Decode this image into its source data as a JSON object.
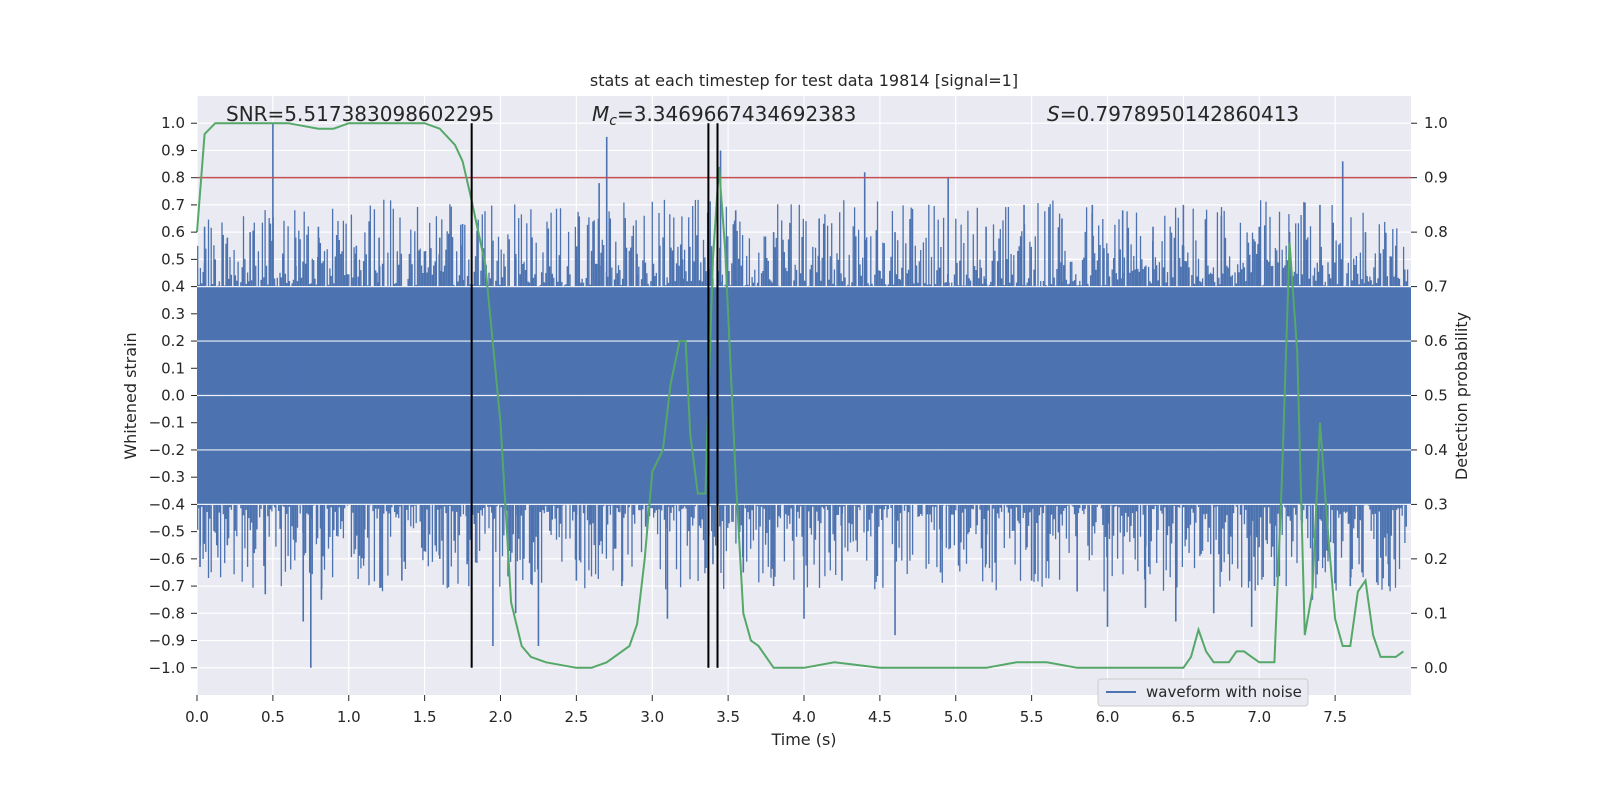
{
  "chart_data": {
    "type": "line",
    "title": "stats at each timestep for test data 19814 [signal=1]",
    "xlabel": "Time (s)",
    "ylabel": "Whitened strain",
    "ylabel_right": "Detection probability",
    "xlim": [
      0.0,
      8.0
    ],
    "ylim": [
      -1.1,
      1.1
    ],
    "ylim_right": [
      -0.05,
      1.05
    ],
    "x_ticks": [
      "0.0",
      "0.5",
      "1.0",
      "1.5",
      "2.0",
      "2.5",
      "3.0",
      "3.5",
      "4.0",
      "4.5",
      "5.0",
      "5.5",
      "6.0",
      "6.5",
      "7.0",
      "7.5"
    ],
    "y_ticks": [
      "1.0",
      "0.9",
      "0.8",
      "0.7",
      "0.6",
      "0.5",
      "0.4",
      "0.3",
      "0.2",
      "0.1",
      "0.0",
      "−0.1",
      "−0.2",
      "−0.3",
      "−0.4",
      "−0.5",
      "−0.6",
      "−0.7",
      "−0.8",
      "−0.9",
      "−1.0"
    ],
    "y_ticks_right": [
      "1.0",
      "0.9",
      "0.8",
      "0.7",
      "0.6",
      "0.5",
      "0.4",
      "0.3",
      "0.2",
      "0.1",
      "0.0"
    ],
    "annotations": {
      "snr": "SNR=5.517383098602295",
      "mc_symbol": "M",
      "mc_sub": "c",
      "mc_value": "=3.3469667434692383",
      "s_symbol": "S",
      "s_value": "=0.7978950142860413"
    },
    "threshold_line": {
      "axis": "right",
      "value": 0.9,
      "color": "#c44e52"
    },
    "vertical_lines": [
      1.81,
      3.37,
      3.43
    ],
    "legend": {
      "label": "waveform with noise",
      "position": "lower-right"
    },
    "series": [
      {
        "name": "waveform with noise",
        "axis": "left",
        "color": "#4c72b0",
        "dense_band": [
          -0.4,
          0.4
        ],
        "peaks": [
          [
            0.05,
            0.62
          ],
          [
            0.12,
            0.5
          ],
          [
            0.2,
            0.58
          ],
          [
            0.35,
            0.6
          ],
          [
            0.5,
            1.0
          ],
          [
            0.65,
            0.58
          ],
          [
            0.8,
            0.62
          ],
          [
            1.05,
            0.55
          ],
          [
            1.2,
            0.58
          ],
          [
            1.4,
            0.52
          ],
          [
            1.6,
            0.58
          ],
          [
            1.75,
            0.63
          ],
          [
            1.9,
            0.48
          ],
          [
            2.1,
            0.52
          ],
          [
            2.3,
            0.45
          ],
          [
            2.5,
            0.5
          ],
          [
            2.7,
            0.95
          ],
          [
            2.65,
            0.78
          ],
          [
            2.9,
            0.52
          ],
          [
            3.05,
            0.55
          ],
          [
            3.2,
            0.5
          ],
          [
            3.45,
            0.9
          ],
          [
            3.55,
            0.68
          ],
          [
            3.8,
            0.6
          ],
          [
            4.1,
            0.65
          ],
          [
            4.4,
            0.82
          ],
          [
            4.6,
            0.6
          ],
          [
            4.95,
            0.8
          ],
          [
            5.2,
            0.62
          ],
          [
            5.45,
            0.7
          ],
          [
            5.7,
            0.65
          ],
          [
            5.9,
            0.7
          ],
          [
            6.1,
            0.68
          ],
          [
            6.3,
            0.62
          ],
          [
            6.5,
            0.7
          ],
          [
            6.75,
            0.66
          ],
          [
            7.0,
            0.62
          ],
          [
            7.2,
            0.6
          ],
          [
            7.4,
            0.7
          ],
          [
            7.55,
            0.86
          ],
          [
            7.7,
            0.6
          ],
          [
            7.9,
            0.55
          ]
        ],
        "troughs": [
          [
            0.02,
            -0.63
          ],
          [
            0.2,
            -0.55
          ],
          [
            0.45,
            -0.73
          ],
          [
            0.7,
            -0.83
          ],
          [
            0.75,
            -1.0
          ],
          [
            0.82,
            -0.75
          ],
          [
            1.1,
            -0.6
          ],
          [
            1.35,
            -0.68
          ],
          [
            1.6,
            -0.6
          ],
          [
            1.78,
            -0.62
          ],
          [
            1.95,
            -0.92
          ],
          [
            2.1,
            -0.8
          ],
          [
            2.25,
            -0.92
          ],
          [
            2.5,
            -0.68
          ],
          [
            2.8,
            -0.7
          ],
          [
            3.1,
            -0.82
          ],
          [
            3.4,
            -0.62
          ],
          [
            3.6,
            -0.65
          ],
          [
            3.8,
            -0.7
          ],
          [
            4.0,
            -0.82
          ],
          [
            4.25,
            -0.68
          ],
          [
            4.6,
            -0.88
          ],
          [
            4.9,
            -0.65
          ],
          [
            5.2,
            -0.62
          ],
          [
            5.5,
            -0.68
          ],
          [
            5.8,
            -0.72
          ],
          [
            6.0,
            -0.85
          ],
          [
            6.25,
            -0.78
          ],
          [
            6.45,
            -0.83
          ],
          [
            6.7,
            -0.8
          ],
          [
            6.95,
            -0.85
          ],
          [
            7.1,
            -0.7
          ],
          [
            7.35,
            -0.75
          ],
          [
            7.6,
            -0.7
          ],
          [
            7.85,
            -0.62
          ]
        ]
      },
      {
        "name": "detection probability",
        "axis": "right",
        "color": "#55a868",
        "x": [
          0.0,
          0.05,
          0.12,
          0.2,
          0.4,
          0.6,
          0.8,
          0.9,
          1.0,
          1.2,
          1.4,
          1.5,
          1.6,
          1.7,
          1.75,
          1.8,
          1.9,
          2.0,
          2.07,
          2.14,
          2.2,
          2.3,
          2.5,
          2.6,
          2.7,
          2.8,
          2.85,
          2.9,
          2.95,
          3.0,
          3.07,
          3.12,
          3.18,
          3.22,
          3.25,
          3.3,
          3.35,
          3.4,
          3.44,
          3.48,
          3.55,
          3.6,
          3.65,
          3.7,
          3.75,
          3.8,
          4.0,
          4.2,
          4.5,
          4.8,
          5.0,
          5.2,
          5.4,
          5.6,
          5.8,
          6.0,
          6.2,
          6.4,
          6.5,
          6.55,
          6.6,
          6.65,
          6.7,
          6.75,
          6.8,
          6.85,
          6.9,
          6.95,
          7.0,
          7.05,
          7.1,
          7.15,
          7.2,
          7.25,
          7.3,
          7.35,
          7.4,
          7.45,
          7.5,
          7.55,
          7.6,
          7.65,
          7.7,
          7.75,
          7.8,
          7.9,
          7.95
        ],
        "y": [
          0.8,
          0.98,
          1.0,
          1.0,
          1.0,
          1.0,
          0.99,
          0.99,
          1.0,
          1.0,
          1.0,
          1.0,
          0.99,
          0.96,
          0.93,
          0.87,
          0.74,
          0.45,
          0.12,
          0.04,
          0.02,
          0.01,
          0.0,
          0.0,
          0.01,
          0.03,
          0.04,
          0.08,
          0.2,
          0.36,
          0.4,
          0.52,
          0.6,
          0.6,
          0.43,
          0.32,
          0.32,
          0.75,
          0.92,
          0.77,
          0.35,
          0.1,
          0.05,
          0.04,
          0.02,
          0.0,
          0.0,
          0.01,
          0.0,
          0.0,
          0.0,
          0.0,
          0.01,
          0.01,
          0.0,
          0.0,
          0.0,
          0.0,
          0.0,
          0.02,
          0.07,
          0.03,
          0.01,
          0.01,
          0.01,
          0.03,
          0.03,
          0.02,
          0.01,
          0.01,
          0.01,
          0.35,
          0.78,
          0.58,
          0.06,
          0.14,
          0.45,
          0.26,
          0.09,
          0.04,
          0.04,
          0.14,
          0.16,
          0.06,
          0.02,
          0.02,
          0.03
        ]
      }
    ]
  }
}
